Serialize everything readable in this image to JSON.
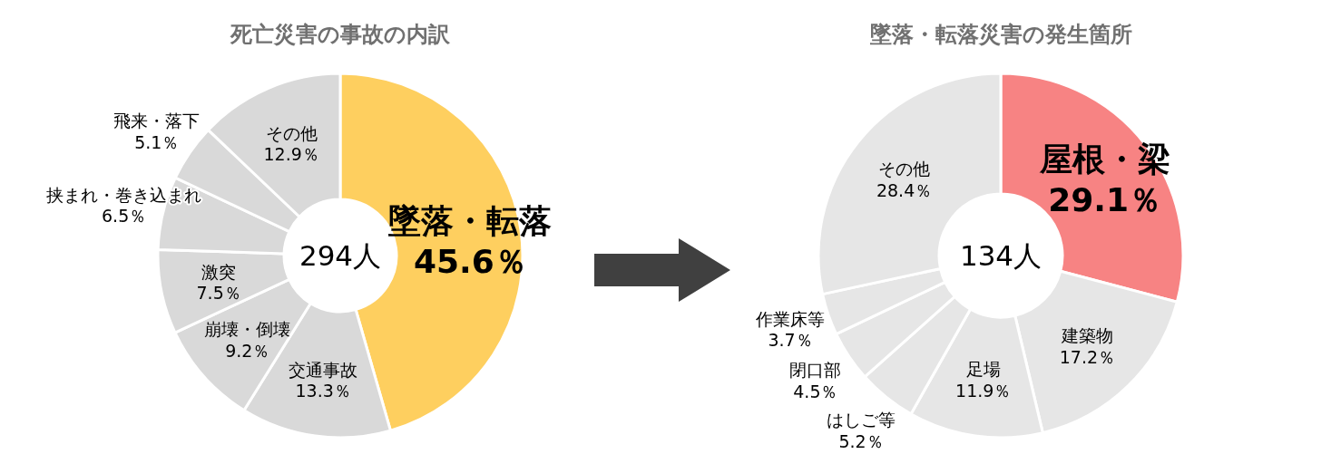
{
  "chart_data": [
    {
      "type": "donut",
      "title": "死亡災害の事故の内訳",
      "categories": [
        "墜落・転落",
        "交通事故",
        "崩壊・倒壊",
        "激突",
        "挟まれ・巻き込まれ",
        "飛来・落下",
        "その他"
      ],
      "values": [
        45.6,
        13.3,
        9.2,
        7.5,
        6.5,
        5.1,
        12.9
      ],
      "value_labels": [
        "45.6％",
        "13.3％",
        "9.2％",
        "7.5％",
        "6.5％",
        "5.1％",
        "12.9％"
      ],
      "colors": [
        "#fecf5f",
        "#d9d9d9",
        "#d9d9d9",
        "#d9d9d9",
        "#d9d9d9",
        "#d9d9d9",
        "#d9d9d9"
      ],
      "annotations": [
        "294人"
      ],
      "legend": false
    },
    {
      "type": "donut",
      "title": "墜落・転落災害の発生箇所",
      "categories": [
        "屋根・梁",
        "建築物",
        "足場",
        "はしご等",
        "閉口部",
        "作業床等",
        "その他"
      ],
      "values": [
        29.1,
        17.2,
        11.9,
        5.2,
        4.5,
        3.7,
        28.4
      ],
      "value_labels": [
        "29.1％",
        "17.2％",
        "11.9％",
        "5.2％",
        "4.5％",
        "3.7％",
        "28.4％"
      ],
      "colors": [
        "#f78383",
        "#e6e6e6",
        "#e6e6e6",
        "#e6e6e6",
        "#e6e6e6",
        "#e6e6e6",
        "#e6e6e6"
      ],
      "annotations": [
        "134人"
      ],
      "legend": false
    }
  ]
}
